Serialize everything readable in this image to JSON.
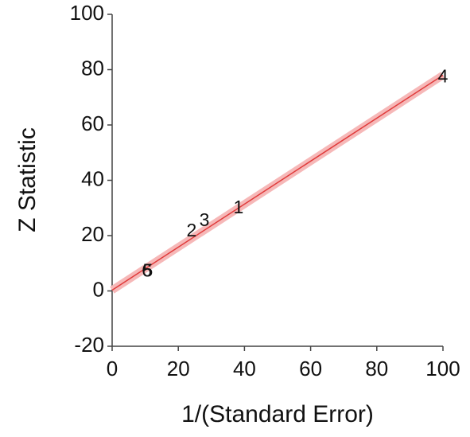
{
  "chart_data": {
    "type": "scatter",
    "xlabel": "1/(Standard Error)",
    "ylabel": "Z Statistic",
    "point_labels": [
      "1",
      "2",
      "3",
      "4",
      "5",
      "6"
    ],
    "x": [
      38.2,
      24,
      27.9,
      100,
      10.8,
      10.5
    ],
    "y": [
      29.8,
      21.4,
      25.2,
      77.2,
      7,
      7
    ],
    "fit": {
      "x": [
        0,
        100
      ],
      "y": [
        0.3,
        78
      ],
      "color": "#e03c3c",
      "band_color": "#f6b8b8"
    },
    "xlim": [
      0,
      100
    ],
    "ylim": [
      -20,
      100
    ],
    "xticks": [
      0,
      20,
      40,
      60,
      80,
      100
    ],
    "yticks": [
      -20,
      0,
      20,
      40,
      60,
      80,
      100
    ],
    "grid": false
  }
}
